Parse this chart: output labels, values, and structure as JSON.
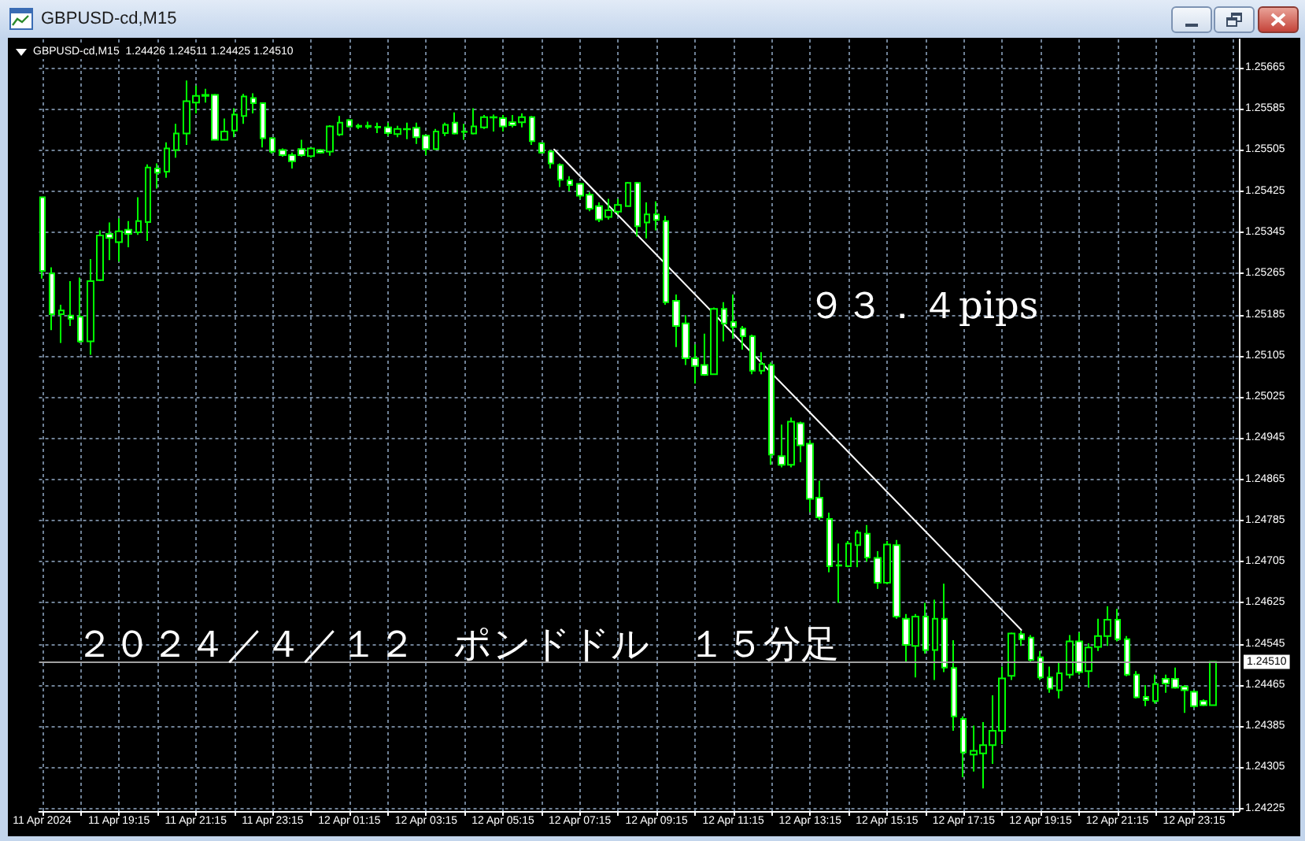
{
  "chart_data": {
    "type": "candlestick",
    "title": "GBPUSD-cd,M15",
    "subtitle": "GBPUSD-cd,M15  1.24426 1.24511 1.24425 1.24510",
    "annotations": [
      "９３．４pips",
      "２０２４／４／１２　ポンドドル　１５分足"
    ],
    "color": "#00ff00",
    "x": [
      "2024-04-11T17:15",
      "2024-04-11T17:30",
      "2024-04-11T17:45",
      "2024-04-11T18:00",
      "2024-04-11T18:15",
      "2024-04-11T18:30",
      "2024-04-11T18:45",
      "2024-04-11T19:00",
      "2024-04-11T19:15",
      "2024-04-11T19:30",
      "2024-04-11T19:45",
      "2024-04-11T20:00",
      "2024-04-11T20:15",
      "2024-04-11T20:30",
      "2024-04-11T20:45",
      "2024-04-11T21:00",
      "2024-04-11T21:15",
      "2024-04-11T21:30",
      "2024-04-11T21:45",
      "2024-04-11T22:00",
      "2024-04-11T22:15",
      "2024-04-11T22:30",
      "2024-04-11T22:45",
      "2024-04-11T23:00",
      "2024-04-11T23:15",
      "2024-04-11T23:30",
      "2024-04-11T23:45",
      "2024-04-12T00:00",
      "2024-04-12T00:15",
      "2024-04-12T00:30",
      "2024-04-12T00:45",
      "2024-04-12T01:00",
      "2024-04-12T01:15",
      "2024-04-12T01:30",
      "2024-04-12T01:45",
      "2024-04-12T02:00",
      "2024-04-12T02:15",
      "2024-04-12T02:30",
      "2024-04-12T02:45",
      "2024-04-12T03:00",
      "2024-04-12T03:15",
      "2024-04-12T03:30",
      "2024-04-12T03:45",
      "2024-04-12T04:00",
      "2024-04-12T04:15",
      "2024-04-12T04:30",
      "2024-04-12T04:45",
      "2024-04-12T05:00",
      "2024-04-12T05:15",
      "2024-04-12T05:30",
      "2024-04-12T05:45",
      "2024-04-12T06:00",
      "2024-04-12T06:15",
      "2024-04-12T06:30",
      "2024-04-12T06:45",
      "2024-04-12T07:00",
      "2024-04-12T07:15",
      "2024-04-12T07:30",
      "2024-04-12T07:45",
      "2024-04-12T08:00",
      "2024-04-12T08:15",
      "2024-04-12T08:30",
      "2024-04-12T08:45",
      "2024-04-12T09:00",
      "2024-04-12T09:15",
      "2024-04-12T09:30",
      "2024-04-12T09:45",
      "2024-04-12T10:00",
      "2024-04-12T10:15",
      "2024-04-12T10:30",
      "2024-04-12T10:45",
      "2024-04-12T11:00",
      "2024-04-12T11:15",
      "2024-04-12T11:30",
      "2024-04-12T11:45",
      "2024-04-12T12:00",
      "2024-04-12T12:15",
      "2024-04-12T12:30",
      "2024-04-12T12:45",
      "2024-04-12T13:00",
      "2024-04-12T13:15",
      "2024-04-12T13:30",
      "2024-04-12T13:45",
      "2024-04-12T14:00",
      "2024-04-12T14:15",
      "2024-04-12T14:30",
      "2024-04-12T14:45",
      "2024-04-12T15:00",
      "2024-04-12T15:15",
      "2024-04-12T15:30",
      "2024-04-12T15:45",
      "2024-04-12T16:00",
      "2024-04-12T16:15",
      "2024-04-12T16:30",
      "2024-04-12T16:45",
      "2024-04-12T17:00",
      "2024-04-12T17:15",
      "2024-04-12T17:30",
      "2024-04-12T17:45",
      "2024-04-12T18:00",
      "2024-04-12T18:15",
      "2024-04-12T18:30",
      "2024-04-12T18:45",
      "2024-04-12T19:00",
      "2024-04-12T19:15",
      "2024-04-12T19:30",
      "2024-04-12T19:45",
      "2024-04-12T20:00",
      "2024-04-12T20:15",
      "2024-04-12T20:30",
      "2024-04-12T20:45",
      "2024-04-12T21:00",
      "2024-04-12T21:15",
      "2024-04-12T21:30",
      "2024-04-12T21:45",
      "2024-04-12T22:00",
      "2024-04-12T22:15",
      "2024-04-12T22:30",
      "2024-04-12T22:45",
      "2024-04-12T23:00",
      "2024-04-12T23:15",
      "2024-04-12T23:30",
      "2024-04-12T23:45"
    ],
    "ohlc": [
      [
        1.25413,
        1.25413,
        1.25255,
        1.2527
      ],
      [
        1.25265,
        1.25277,
        1.25155,
        1.25186
      ],
      [
        1.25186,
        1.25204,
        1.2513,
        1.25193
      ],
      [
        1.25183,
        1.2525,
        1.25163,
        1.25177
      ],
      [
        1.25181,
        1.25257,
        1.2513,
        1.25133
      ],
      [
        1.25133,
        1.25293,
        1.25107,
        1.2525
      ],
      [
        1.25252,
        1.25349,
        1.2525,
        1.25339
      ],
      [
        1.25342,
        1.25364,
        1.25291,
        1.25334
      ],
      [
        1.25326,
        1.25372,
        1.25288,
        1.25347
      ],
      [
        1.2535,
        1.25367,
        1.25316,
        1.25342
      ],
      [
        1.25345,
        1.25413,
        1.2534,
        1.25367
      ],
      [
        1.25365,
        1.25477,
        1.25328,
        1.25471
      ],
      [
        1.25469,
        1.25479,
        1.2543,
        1.25461
      ],
      [
        1.25463,
        1.2552,
        1.25451,
        1.25508
      ],
      [
        1.25505,
        1.25556,
        1.2549,
        1.25537
      ],
      [
        1.25537,
        1.2564,
        1.25515,
        1.256
      ],
      [
        1.25597,
        1.2563,
        1.25576,
        1.2561
      ],
      [
        1.2561,
        1.25624,
        1.25597,
        1.25612
      ],
      [
        1.25612,
        1.25614,
        1.25524,
        1.25525
      ],
      [
        1.25525,
        1.25566,
        1.25524,
        1.25541
      ],
      [
        1.25543,
        1.25586,
        1.2553,
        1.25574
      ],
      [
        1.25571,
        1.25614,
        1.25556,
        1.25609
      ],
      [
        1.25606,
        1.25615,
        1.25576,
        1.25596
      ],
      [
        1.25596,
        1.25597,
        1.2551,
        1.25528
      ],
      [
        1.25528,
        1.2553,
        1.25498,
        1.25502
      ],
      [
        1.25505,
        1.25508,
        1.25492,
        1.25495
      ],
      [
        1.25495,
        1.255,
        1.25469,
        1.25483
      ],
      [
        1.25507,
        1.25525,
        1.25492,
        1.25495
      ],
      [
        1.25493,
        1.2551,
        1.2549,
        1.25508
      ],
      [
        1.25505,
        1.25507,
        1.25498,
        1.255
      ],
      [
        1.25502,
        1.25553,
        1.25494,
        1.25551
      ],
      [
        1.25535,
        1.25571,
        1.25532,
        1.25558
      ],
      [
        1.25563,
        1.25565,
        1.25549,
        1.25551
      ],
      [
        1.25552,
        1.25556,
        1.25546,
        1.2555
      ],
      [
        1.25552,
        1.2556,
        1.25546,
        1.2555
      ],
      [
        1.25549,
        1.25558,
        1.25538,
        1.2555
      ],
      [
        1.25549,
        1.25558,
        1.25532,
        1.25538
      ],
      [
        1.25536,
        1.25552,
        1.2553,
        1.25546
      ],
      [
        1.25545,
        1.25558,
        1.25526,
        1.25546
      ],
      [
        1.25548,
        1.25558,
        1.25517,
        1.2553
      ],
      [
        1.25533,
        1.25535,
        1.25495,
        1.25507
      ],
      [
        1.25507,
        1.25546,
        1.25505,
        1.25541
      ],
      [
        1.25538,
        1.25558,
        1.25532,
        1.25554
      ],
      [
        1.25558,
        1.25578,
        1.25535,
        1.25537
      ],
      [
        1.2554,
        1.25556,
        1.25525,
        1.25541
      ],
      [
        1.25537,
        1.25586,
        1.25535,
        1.25551
      ],
      [
        1.25549,
        1.25573,
        1.25546,
        1.25569
      ],
      [
        1.25569,
        1.25574,
        1.25541,
        1.25568
      ],
      [
        1.25567,
        1.25573,
        1.25541,
        1.25551
      ],
      [
        1.25559,
        1.25573,
        1.25549,
        1.25553
      ],
      [
        1.25559,
        1.25576,
        1.25549,
        1.25569
      ],
      [
        1.25569,
        1.25571,
        1.25515,
        1.25522
      ],
      [
        1.25518,
        1.2552,
        1.25498,
        1.255
      ],
      [
        1.25502,
        1.25505,
        1.25469,
        1.25479
      ],
      [
        1.25476,
        1.25479,
        1.25433,
        1.25447
      ],
      [
        1.25446,
        1.25454,
        1.25425,
        1.25437
      ],
      [
        1.25439,
        1.25441,
        1.2541,
        1.25416
      ],
      [
        1.25418,
        1.25423,
        1.25386,
        1.25391
      ],
      [
        1.25396,
        1.25403,
        1.25365,
        1.2537
      ],
      [
        1.25375,
        1.2541,
        1.2537,
        1.25388
      ],
      [
        1.25385,
        1.2541,
        1.2538,
        1.25398
      ],
      [
        1.25396,
        1.25443,
        1.25395,
        1.25441
      ],
      [
        1.25441,
        1.25443,
        1.25337,
        1.25357
      ],
      [
        1.25364,
        1.25403,
        1.25333,
        1.2538
      ],
      [
        1.2538,
        1.25405,
        1.25349,
        1.25369
      ],
      [
        1.25367,
        1.25377,
        1.25204,
        1.25209
      ],
      [
        1.25212,
        1.25224,
        1.25122,
        1.25163
      ],
      [
        1.25168,
        1.25184,
        1.25087,
        1.251
      ],
      [
        1.251,
        1.25127,
        1.25051,
        1.25085
      ],
      [
        1.25087,
        1.25148,
        1.25066,
        1.25068
      ],
      [
        1.25069,
        1.25199,
        1.25068,
        1.25196
      ],
      [
        1.25196,
        1.25209,
        1.25133,
        1.25168
      ],
      [
        1.25171,
        1.25224,
        1.25138,
        1.25161
      ],
      [
        1.25158,
        1.25163,
        1.25117,
        1.25143
      ],
      [
        1.25143,
        1.25146,
        1.25069,
        1.25076
      ],
      [
        1.25076,
        1.25112,
        1.25069,
        1.25089
      ],
      [
        1.25087,
        1.25092,
        1.24893,
        1.24913
      ],
      [
        1.2491,
        1.24971,
        1.24888,
        1.24893
      ],
      [
        1.24893,
        1.24985,
        1.24888,
        1.24977
      ],
      [
        1.24974,
        1.24977,
        1.24898,
        1.24931
      ],
      [
        1.24934,
        1.24941,
        1.24801,
        1.24827
      ],
      [
        1.24829,
        1.24862,
        1.24786,
        1.24791
      ],
      [
        1.24788,
        1.248,
        1.24684,
        1.24696
      ],
      [
        1.24698,
        1.2474,
        1.24625,
        1.24697
      ],
      [
        1.24696,
        1.24745,
        1.24694,
        1.2474
      ],
      [
        1.24737,
        1.24766,
        1.24694,
        1.24761
      ],
      [
        1.24759,
        1.24776,
        1.24705,
        1.24713
      ],
      [
        1.24712,
        1.24725,
        1.24652,
        1.24664
      ],
      [
        1.24664,
        1.24745,
        1.24661,
        1.24738
      ],
      [
        1.24737,
        1.24747,
        1.24594,
        1.24598
      ],
      [
        1.24594,
        1.24603,
        1.24511,
        1.24543
      ],
      [
        1.24541,
        1.24603,
        1.2448,
        1.24598
      ],
      [
        1.24598,
        1.24625,
        1.24526,
        1.24533
      ],
      [
        1.24533,
        1.24631,
        1.24475,
        1.24594
      ],
      [
        1.24594,
        1.24662,
        1.2449,
        1.24499
      ],
      [
        1.24498,
        1.24552,
        1.24376,
        1.24404
      ],
      [
        1.24399,
        1.24404,
        1.24286,
        1.24334
      ],
      [
        1.2433,
        1.24386,
        1.24297,
        1.24337
      ],
      [
        1.24332,
        1.24393,
        1.24264,
        1.24348
      ],
      [
        1.24348,
        1.24445,
        1.24312,
        1.24376
      ],
      [
        1.24376,
        1.24501,
        1.2435,
        1.24478
      ],
      [
        1.24483,
        1.24567,
        1.24475,
        1.24565
      ],
      [
        1.24564,
        1.2457,
        1.24541,
        1.24554
      ],
      [
        1.24557,
        1.24562,
        1.24511,
        1.24514
      ],
      [
        1.24519,
        1.24531,
        1.24475,
        1.2448
      ],
      [
        1.2448,
        1.24501,
        1.2445,
        1.24458
      ],
      [
        1.24455,
        1.24511,
        1.24439,
        1.24488
      ],
      [
        1.24485,
        1.24562,
        1.24478,
        1.2455
      ],
      [
        1.2455,
        1.24567,
        1.24485,
        1.2449
      ],
      [
        1.24492,
        1.24546,
        1.2446,
        1.24538
      ],
      [
        1.24539,
        1.24594,
        1.24531,
        1.2456
      ],
      [
        1.2456,
        1.24618,
        1.24541,
        1.24592
      ],
      [
        1.24592,
        1.24613,
        1.2455,
        1.24554
      ],
      [
        1.24554,
        1.2456,
        1.24482,
        1.24485
      ],
      [
        1.24485,
        1.24492,
        1.24439,
        1.24441
      ],
      [
        1.24442,
        1.24465,
        1.24424,
        1.24436
      ],
      [
        1.24434,
        1.24485,
        1.24429,
        1.24467
      ],
      [
        1.24477,
        1.24485,
        1.2445,
        1.24468
      ],
      [
        1.24477,
        1.24499,
        1.24458,
        1.2446
      ],
      [
        1.24462,
        1.24465,
        1.24411,
        1.24455
      ],
      [
        1.24452,
        1.24455,
        1.24421,
        1.24424
      ],
      [
        1.24434,
        1.24437,
        1.24424,
        1.24426
      ],
      [
        1.24426,
        1.24511,
        1.24425,
        1.2451
      ]
    ],
    "series": [
      {
        "type": "line",
        "color": "#ffffff",
        "x": [
          "2024-04-12T06:35",
          "2024-04-12T18:45"
        ],
        "values": [
          1.25506,
          1.24572
        ]
      }
    ],
    "ref_lines": [
      {
        "axis": "y",
        "value": 1.2451,
        "label": "1.24510",
        "color": "#a0a0a0"
      }
    ],
    "xlim": [
      "2024-04-11T17:10",
      "2024-04-13T00:25"
    ],
    "xticks": [
      {
        "value": "2024-04-11T17:15",
        "label": "11 Apr 2024"
      },
      {
        "value": "2024-04-11T18:15",
        "label": null
      },
      {
        "value": "2024-04-11T19:15",
        "label": "11 Apr 19:15"
      },
      {
        "value": "2024-04-11T20:15",
        "label": null
      },
      {
        "value": "2024-04-11T21:15",
        "label": "11 Apr 21:15"
      },
      {
        "value": "2024-04-11T22:15",
        "label": null
      },
      {
        "value": "2024-04-11T23:15",
        "label": "11 Apr 23:15"
      },
      {
        "value": "2024-04-12T00:15",
        "label": null
      },
      {
        "value": "2024-04-12T01:15",
        "label": "12 Apr 01:15"
      },
      {
        "value": "2024-04-12T02:15",
        "label": null
      },
      {
        "value": "2024-04-12T03:15",
        "label": "12 Apr 03:15"
      },
      {
        "value": "2024-04-12T04:15",
        "label": null
      },
      {
        "value": "2024-04-12T05:15",
        "label": "12 Apr 05:15"
      },
      {
        "value": "2024-04-12T06:15",
        "label": null
      },
      {
        "value": "2024-04-12T07:15",
        "label": "12 Apr 07:15"
      },
      {
        "value": "2024-04-12T08:15",
        "label": null
      },
      {
        "value": "2024-04-12T09:15",
        "label": "12 Apr 09:15"
      },
      {
        "value": "2024-04-12T10:15",
        "label": null
      },
      {
        "value": "2024-04-12T11:15",
        "label": "12 Apr 11:15"
      },
      {
        "value": "2024-04-12T12:15",
        "label": null
      },
      {
        "value": "2024-04-12T13:15",
        "label": "12 Apr 13:15"
      },
      {
        "value": "2024-04-12T14:15",
        "label": null
      },
      {
        "value": "2024-04-12T15:15",
        "label": "12 Apr 15:15"
      },
      {
        "value": "2024-04-12T16:15",
        "label": null
      },
      {
        "value": "2024-04-12T17:15",
        "label": "12 Apr 17:15"
      },
      {
        "value": "2024-04-12T18:15",
        "label": null
      },
      {
        "value": "2024-04-12T19:15",
        "label": "12 Apr 19:15"
      },
      {
        "value": "2024-04-12T20:15",
        "label": null
      },
      {
        "value": "2024-04-12T21:15",
        "label": "12 Apr 21:15"
      },
      {
        "value": "2024-04-12T22:15",
        "label": null
      },
      {
        "value": "2024-04-12T23:15",
        "label": "12 Apr 23:15"
      },
      {
        "value": "2024-04-13T00:15",
        "label": null
      }
    ],
    "ylim": [
      1.2422,
      1.2572
    ],
    "yticks": [
      1.24225,
      1.24305,
      1.24385,
      1.24465,
      1.24545,
      1.24625,
      1.24705,
      1.24785,
      1.24865,
      1.24945,
      1.25025,
      1.25105,
      1.25185,
      1.25265,
      1.25345,
      1.25425,
      1.25505,
      1.25585,
      1.25665
    ],
    "grid": true
  }
}
